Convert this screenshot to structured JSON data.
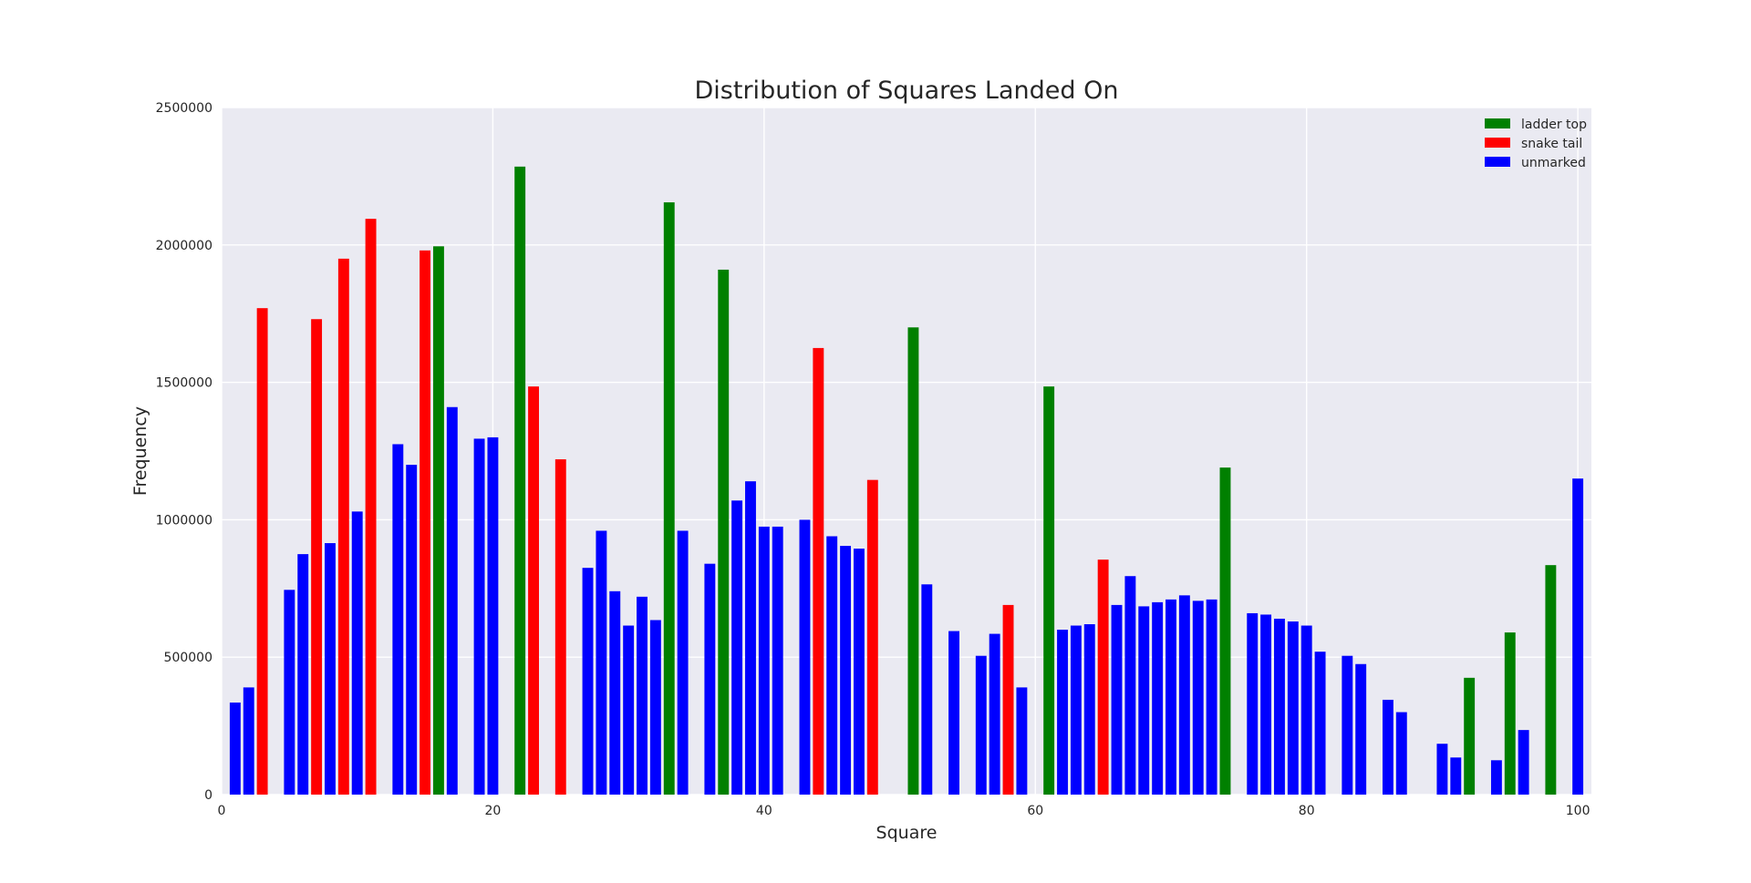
{
  "chart_data": {
    "type": "bar",
    "title": "Distribution of Squares Landed On",
    "xlabel": "Square",
    "ylabel": "Frequency",
    "xlim": [
      0,
      101
    ],
    "ylim": [
      0,
      2500000
    ],
    "xticks": [
      0,
      20,
      40,
      60,
      80,
      100
    ],
    "yticks": [
      0,
      500000,
      1000000,
      1500000,
      2000000,
      2500000
    ],
    "grid": true,
    "legend_position": "top-right",
    "colors": {
      "ladder top": "#008000",
      "snake tail": "#ff0000",
      "unmarked": "#0000ff",
      "background": "#eaeaf2",
      "grid": "#ffffff"
    },
    "series": [
      {
        "name": "ladder top",
        "color": "#008000",
        "x": [
          16,
          22,
          33,
          37,
          51,
          61,
          74,
          92,
          95,
          98
        ],
        "values": [
          1995000,
          2285000,
          2155000,
          1910000,
          1700000,
          1485000,
          1190000,
          425000,
          590000,
          835000
        ]
      },
      {
        "name": "snake tail",
        "color": "#ff0000",
        "x": [
          3,
          7,
          9,
          11,
          15,
          23,
          25,
          44,
          48,
          58,
          65
        ],
        "values": [
          1770000,
          1730000,
          1950000,
          2095000,
          1980000,
          1485000,
          1220000,
          1625000,
          1145000,
          690000,
          855000
        ]
      },
      {
        "name": "unmarked",
        "color": "#0000ff",
        "x": [
          1,
          2,
          5,
          6,
          8,
          10,
          13,
          14,
          17,
          19,
          20,
          27,
          28,
          29,
          30,
          31,
          32,
          34,
          36,
          38,
          39,
          40,
          41,
          43,
          45,
          46,
          47,
          52,
          54,
          56,
          57,
          59,
          62,
          63,
          64,
          66,
          67,
          68,
          69,
          70,
          71,
          72,
          73,
          76,
          77,
          78,
          79,
          80,
          81,
          83,
          84,
          86,
          87,
          90,
          91,
          94,
          96,
          100
        ],
        "values": [
          335000,
          390000,
          745000,
          875000,
          915000,
          1030000,
          1275000,
          1200000,
          1410000,
          1295000,
          1300000,
          825000,
          960000,
          740000,
          615000,
          720000,
          635000,
          960000,
          840000,
          1070000,
          1140000,
          975000,
          975000,
          1000000,
          940000,
          905000,
          895000,
          765000,
          595000,
          505000,
          585000,
          390000,
          600000,
          615000,
          620000,
          690000,
          795000,
          685000,
          700000,
          710000,
          725000,
          705000,
          710000,
          660000,
          655000,
          640000,
          630000,
          615000,
          520000,
          505000,
          475000,
          345000,
          300000,
          185000,
          135000,
          125000,
          235000,
          1150000
        ]
      }
    ]
  }
}
